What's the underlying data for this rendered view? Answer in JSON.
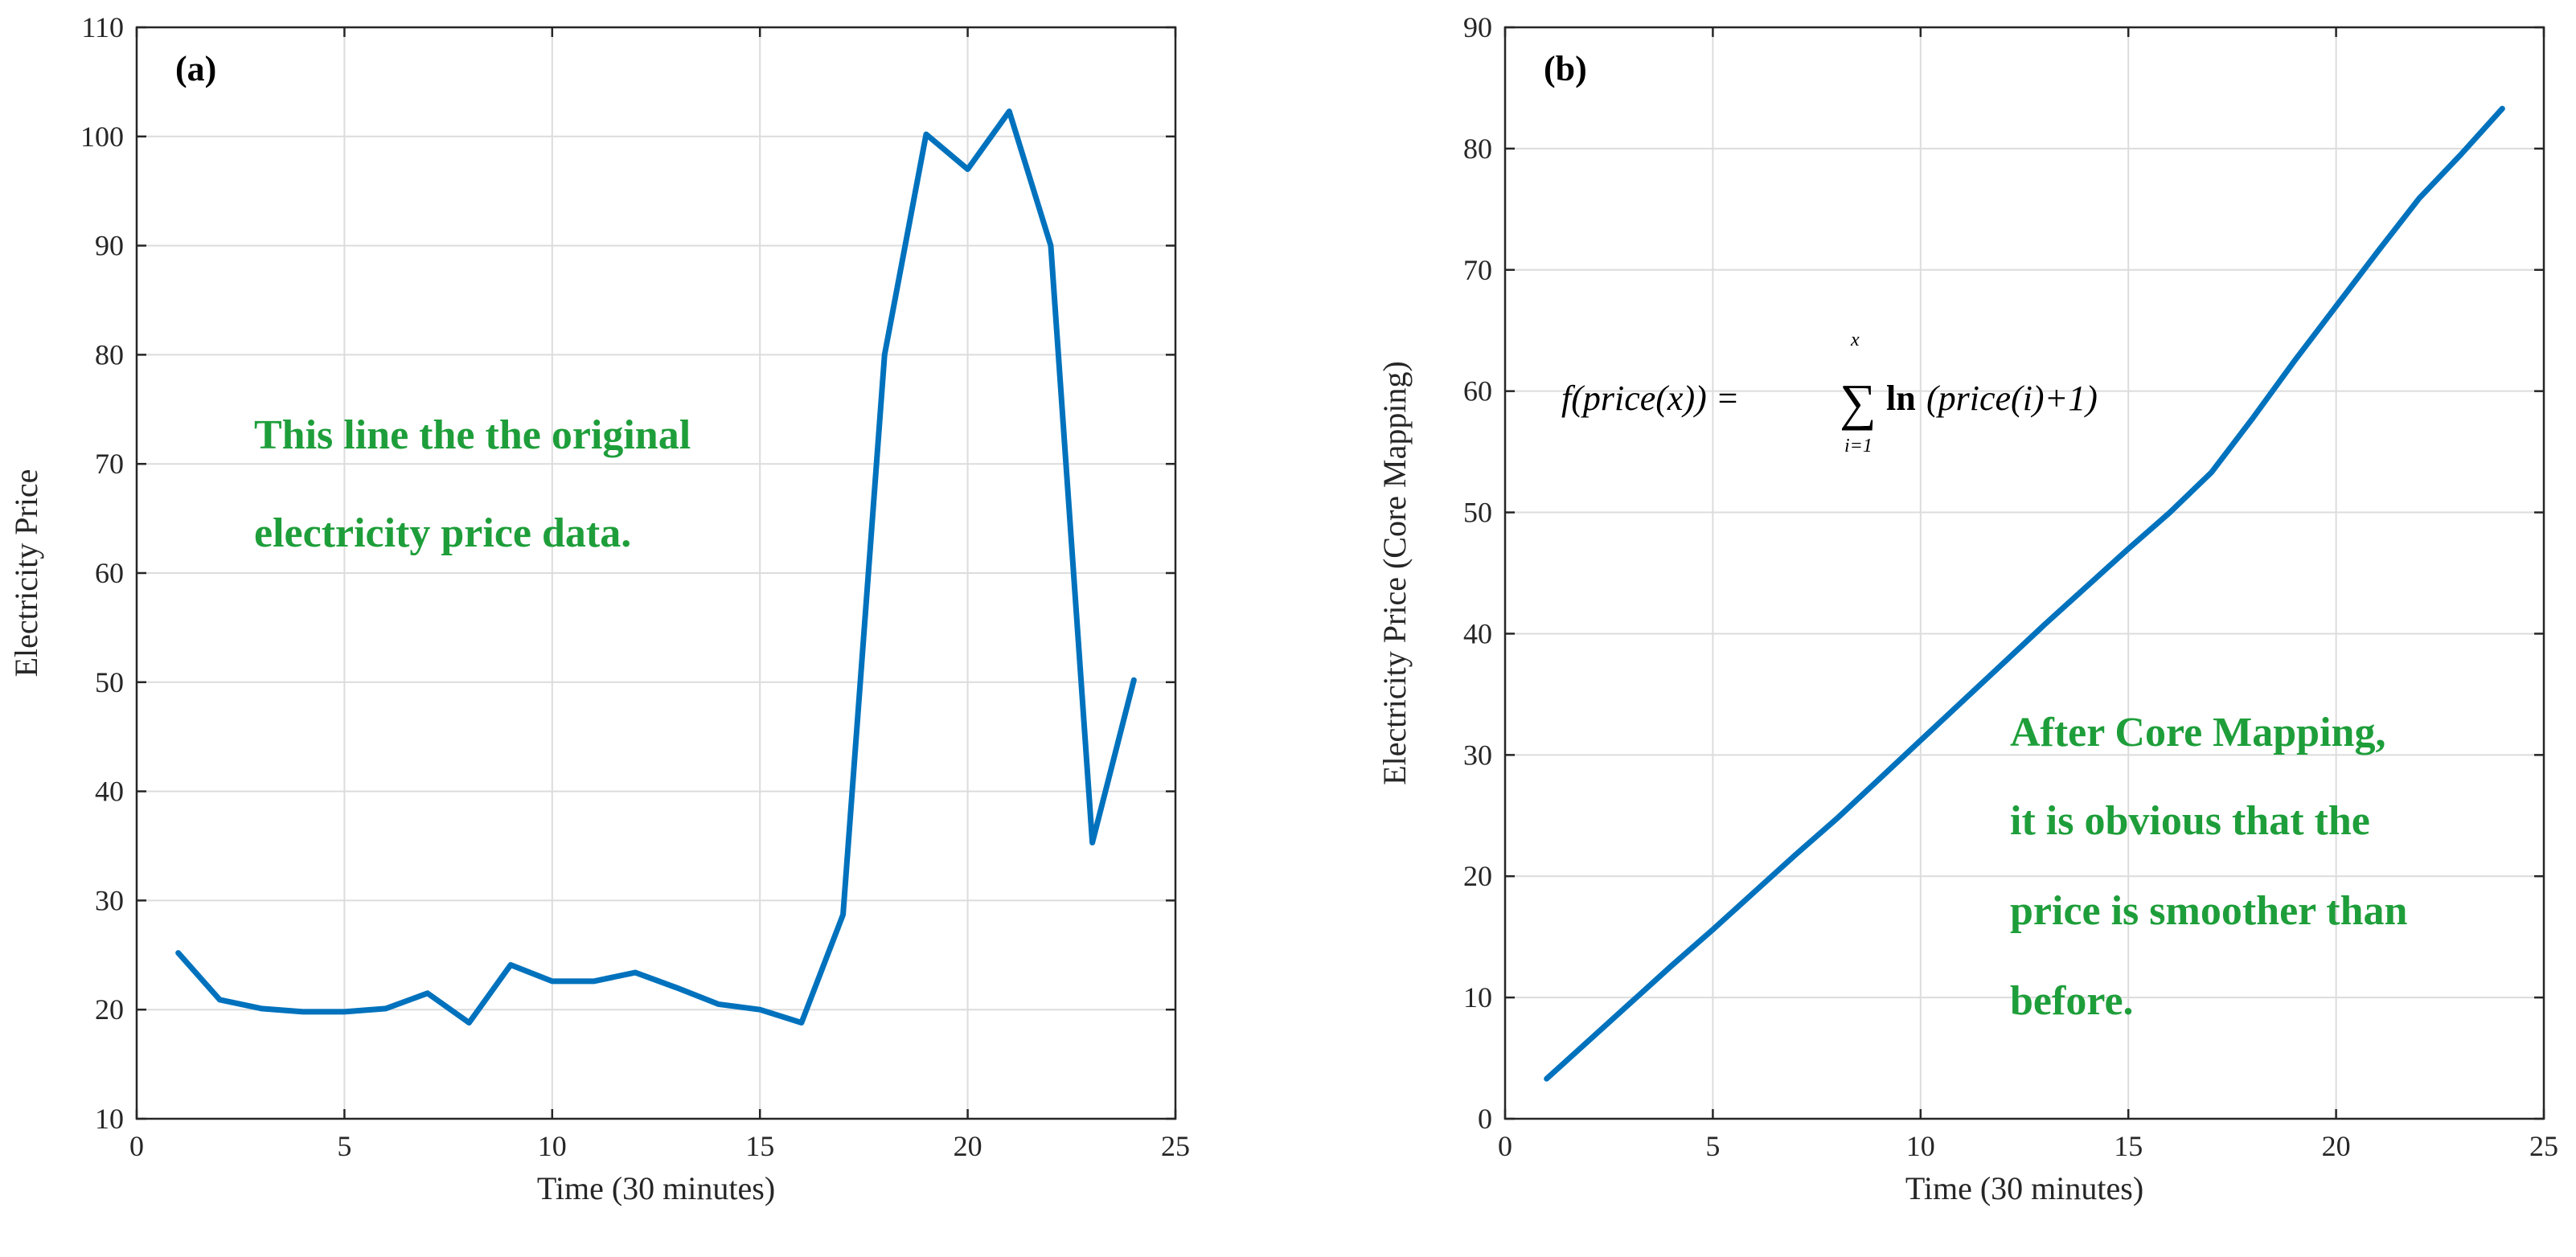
{
  "colors": {
    "series": "#0072BD",
    "annotation": "#1E9E3A"
  },
  "chart_data": [
    {
      "type": "line",
      "panel_label": "(a)",
      "xlabel": "Time (30 minutes)",
      "ylabel": "Electricity Price",
      "xlim": [
        0,
        25
      ],
      "ylim": [
        10,
        110
      ],
      "xticks": [
        0,
        5,
        10,
        15,
        20,
        25
      ],
      "yticks": [
        10,
        20,
        30,
        40,
        50,
        60,
        70,
        80,
        90,
        100,
        110
      ],
      "grid": true,
      "x": [
        1,
        2,
        3,
        4,
        5,
        6,
        7,
        8,
        9,
        10,
        11,
        12,
        13,
        14,
        15,
        16,
        17,
        18,
        19,
        20,
        21,
        22,
        23,
        24
      ],
      "series": [
        {
          "values": [
            25.2,
            20.9,
            20.1,
            19.8,
            19.8,
            20.1,
            21.5,
            18.8,
            24.1,
            22.6,
            22.6,
            23.4,
            22.0,
            20.5,
            20.0,
            18.8,
            28.7,
            80.0,
            100.2,
            97.0,
            102.3,
            90.0,
            35.3,
            50.2
          ]
        }
      ],
      "annotations": [
        "This line the the original",
        "electricity price data."
      ]
    },
    {
      "type": "line",
      "panel_label": "(b)",
      "xlabel": "Time (30 minutes)",
      "ylabel": "Electricity Price (Core Mapping)",
      "xlim": [
        0,
        25
      ],
      "ylim": [
        0,
        90
      ],
      "xticks": [
        0,
        5,
        10,
        15,
        20,
        25
      ],
      "yticks": [
        0,
        10,
        20,
        30,
        40,
        50,
        60,
        70,
        80,
        90
      ],
      "grid": true,
      "x": [
        1,
        2,
        3,
        4,
        5,
        6,
        7,
        8,
        9,
        10,
        11,
        12,
        13,
        14,
        15,
        16,
        17,
        18,
        19,
        20,
        21,
        22,
        23,
        24
      ],
      "series": [
        {
          "values": [
            3.3,
            6.4,
            9.5,
            12.6,
            15.6,
            18.7,
            21.8,
            24.8,
            28.0,
            31.2,
            34.4,
            37.6,
            40.8,
            43.9,
            47.0,
            50.0,
            53.3,
            57.8,
            62.5,
            67.0,
            71.5,
            75.9,
            79.5,
            83.3
          ]
        }
      ],
      "annotations": [
        "After Core Mapping,",
        "it is obvious that the",
        "price is smoother than",
        "before."
      ],
      "formula": {
        "lhs": "f(price(x)) =",
        "sum_upper": "x",
        "sum_symbol": "∑",
        "sum_lower": "i=1",
        "ln": "ln",
        "rhs": "(price(i)+1)"
      }
    }
  ]
}
